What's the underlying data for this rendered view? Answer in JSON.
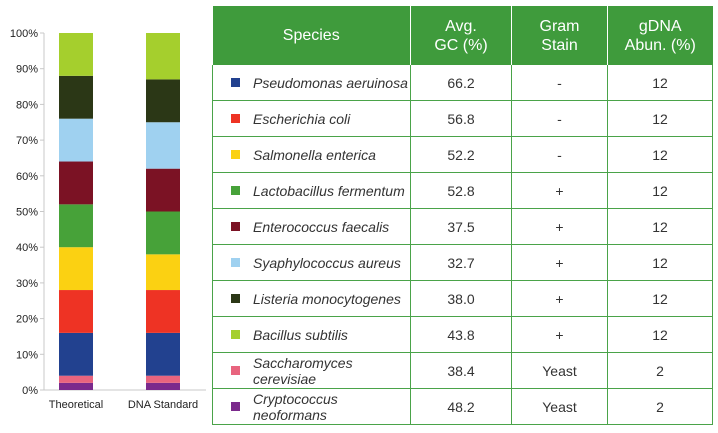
{
  "chart_data": {
    "type": "bar",
    "stacked": true,
    "categories": [
      "Theoretical",
      "DNA Standard"
    ],
    "y_ticks": [
      "0%",
      "10%",
      "20%",
      "30%",
      "40%",
      "50%",
      "60%",
      "70%",
      "80%",
      "90%",
      "100%"
    ],
    "ylim": [
      0,
      100
    ],
    "grid": false,
    "series": [
      {
        "name": "Cryptococcus neoformans",
        "color": "#7b2a8c",
        "values": [
          2,
          2
        ]
      },
      {
        "name": "Saccharomyces cerevisiae",
        "color": "#e8647e",
        "values": [
          2,
          2
        ]
      },
      {
        "name": "Pseudomonas aeruinosa",
        "color": "#22418f",
        "values": [
          12,
          12
        ]
      },
      {
        "name": "Escherichia coli",
        "color": "#ee3324",
        "values": [
          12,
          12
        ]
      },
      {
        "name": "Salmonella enterica",
        "color": "#fbd112",
        "values": [
          12,
          10
        ]
      },
      {
        "name": "Lactobacillus fermentum",
        "color": "#47a239",
        "values": [
          12,
          12
        ]
      },
      {
        "name": "Enterococcus faecalis",
        "color": "#7b1224",
        "values": [
          12,
          12
        ]
      },
      {
        "name": "Syaphylococcus aureus",
        "color": "#9fd1f0",
        "values": [
          12,
          13
        ]
      },
      {
        "name": "Listeria monocytogenes",
        "color": "#2b3716",
        "values": [
          12,
          12
        ]
      },
      {
        "name": "Bacillus subtilis",
        "color": "#a5cf2d",
        "values": [
          12,
          13
        ]
      }
    ]
  },
  "table": {
    "headers": [
      "Species",
      "Avg. GC (%)",
      "Gram Stain",
      "gDNA Abun. (%)"
    ],
    "header_color": "#3f9b3c",
    "rows": [
      {
        "species": "Pseudomonas aeruinosa",
        "color": "#22418f",
        "gc": "66.2",
        "gram": "-",
        "abun": "12"
      },
      {
        "species": "Escherichia coli",
        "color": "#ee3324",
        "gc": "56.8",
        "gram": "-",
        "abun": "12"
      },
      {
        "species": "Salmonella enterica",
        "color": "#fbd112",
        "gc": "52.2",
        "gram": "-",
        "abun": "12"
      },
      {
        "species": "Lactobacillus fermentum",
        "color": "#47a239",
        "gc": "52.8",
        "gram": "+",
        "abun": "12"
      },
      {
        "species": "Enterococcus faecalis",
        "color": "#7b1224",
        "gc": "37.5",
        "gram": "+",
        "abun": "12"
      },
      {
        "species": "Syaphylococcus aureus",
        "color": "#9fd1f0",
        "gc": "32.7",
        "gram": "+",
        "abun": "12"
      },
      {
        "species": "Listeria monocytogenes",
        "color": "#2b3716",
        "gc": "38.0",
        "gram": "+",
        "abun": "12"
      },
      {
        "species": "Bacillus subtilis",
        "color": "#a5cf2d",
        "gc": "43.8",
        "gram": "+",
        "abun": "12"
      },
      {
        "species": "Saccharomyces cerevisiae",
        "color": "#e8647e",
        "gc": "38.4",
        "gram": "Yeast",
        "abun": "2"
      },
      {
        "species": "Cryptococcus neoformans",
        "color": "#7b2a8c",
        "gc": "48.2",
        "gram": "Yeast",
        "abun": "2"
      }
    ]
  }
}
